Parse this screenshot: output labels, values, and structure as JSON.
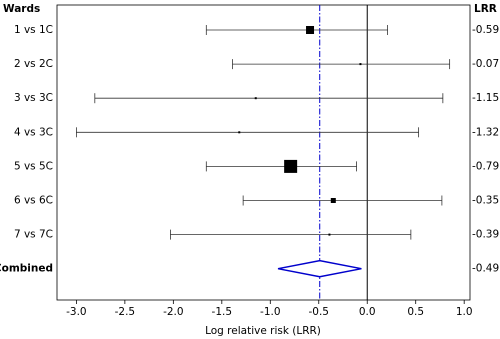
{
  "chart_data": {
    "type": "forest",
    "left_header": "Wards",
    "right_header": "LRR",
    "xlabel": "Log relative risk (LRR)",
    "categories": [
      "1 vs 1C",
      "2 vs 2C",
      "3 vs 3C",
      "4 vs 3C",
      "5 vs 5C",
      "6 vs 6C",
      "7 vs 7C"
    ],
    "values": [
      -0.59,
      -0.07,
      -1.15,
      -1.32,
      -0.79,
      -0.35,
      -0.39
    ],
    "ci_low": [
      -1.66,
      -1.39,
      -2.81,
      -3.0,
      -1.66,
      -1.28,
      -2.03
    ],
    "ci_high": [
      0.21,
      0.85,
      0.78,
      0.53,
      -0.11,
      0.77,
      0.45
    ],
    "weights": [
      8,
      2,
      2,
      2,
      13,
      5,
      2
    ],
    "color": "#000000",
    "combined": {
      "label": "Combined",
      "value": -0.49,
      "ci_low": -0.92,
      "ci_high": -0.06,
      "color": "#0000cc"
    },
    "null_line": 0,
    "xlim": [
      -3.2,
      1.06
    ],
    "xticks": [
      {
        "value": -3.0,
        "label": "-3.0"
      },
      -2.5,
      {
        "value": -2.0,
        "label": "-2.0"
      },
      -1.5,
      {
        "value": -1.0,
        "label": "-1.0"
      },
      -0.5,
      {
        "value": 0.0,
        "label": "0.0"
      },
      0.5,
      {
        "value": 1.0,
        "label": "1.0"
      }
    ]
  }
}
